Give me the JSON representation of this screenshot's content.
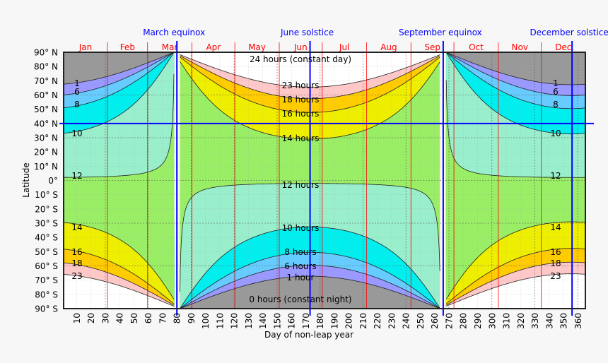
{
  "chart_data": {
    "type": "area",
    "title": "",
    "xlabel": "Day of non-leap year",
    "ylabel": "Latitude",
    "xlim": [
      1,
      365
    ],
    "ylim": [
      -90,
      90
    ],
    "grid": true,
    "x_ticks": [
      10,
      20,
      30,
      40,
      50,
      60,
      70,
      80,
      90,
      100,
      110,
      120,
      130,
      140,
      150,
      160,
      170,
      180,
      190,
      200,
      210,
      220,
      230,
      240,
      250,
      260,
      270,
      280,
      290,
      300,
      310,
      320,
      330,
      340,
      350,
      360
    ],
    "x_tick_labels": [
      "10",
      "20",
      "30",
      "40",
      "50",
      "60",
      "70",
      "80",
      "90",
      "100",
      "110",
      "120",
      "130",
      "140",
      "150",
      "160",
      "170",
      "180",
      "190",
      "200",
      "210",
      "220",
      "230",
      "240",
      "250",
      "260",
      "270",
      "280",
      "290",
      "300",
      "310",
      "320",
      "330",
      "340",
      "350",
      "360"
    ],
    "y_ticks": [
      90,
      80,
      70,
      60,
      50,
      40,
      30,
      20,
      10,
      0,
      -10,
      -20,
      -30,
      -40,
      -50,
      -60,
      -70,
      -80,
      -90
    ],
    "y_tick_labels": [
      "90° N",
      "80° N",
      "70° N",
      "60° N",
      "50° N",
      "40° N",
      "30° N",
      "20° N",
      "10° N",
      "0°",
      "10° S",
      "20° S",
      "30° S",
      "40° S",
      "50° S",
      "60° S",
      "70° S",
      "80° S",
      "90° S"
    ],
    "highlighted_latitude": {
      "value": 40,
      "label": "40° N",
      "color": "#0000ff"
    },
    "months": [
      {
        "label": "Jan",
        "start_day": 1
      },
      {
        "label": "Feb",
        "start_day": 32
      },
      {
        "label": "Mar",
        "start_day": 60
      },
      {
        "label": "Apr",
        "start_day": 91
      },
      {
        "label": "May",
        "start_day": 121
      },
      {
        "label": "Jun",
        "start_day": 152
      },
      {
        "label": "Jul",
        "start_day": 182
      },
      {
        "label": "Aug",
        "start_day": 213
      },
      {
        "label": "Sep",
        "start_day": 244
      },
      {
        "label": "Oct",
        "start_day": 274
      },
      {
        "label": "Nov",
        "start_day": 305
      },
      {
        "label": "Dec",
        "start_day": 335
      }
    ],
    "month_color": "#ff0000",
    "events": [
      {
        "label": "March equinox",
        "day": 80
      },
      {
        "label": "June solstice",
        "day": 173
      },
      {
        "label": "September equinox",
        "day": 266
      },
      {
        "label": "December solstice",
        "day": 356
      }
    ],
    "event_color": "#0000ff",
    "contour_levels_hours": [
      0,
      1,
      6,
      8,
      10,
      12,
      14,
      16,
      18,
      23,
      24
    ],
    "bands": [
      {
        "from": 0,
        "to": 1,
        "color": "#999999"
      },
      {
        "from": 1,
        "to": 6,
        "color": "#9999ff"
      },
      {
        "from": 6,
        "to": 8,
        "color": "#66ccff"
      },
      {
        "from": 8,
        "to": 10,
        "color": "#00eeee"
      },
      {
        "from": 10,
        "to": 12,
        "color": "#99eecc"
      },
      {
        "from": 12,
        "to": 14,
        "color": "#99ee66"
      },
      {
        "from": 14,
        "to": 16,
        "color": "#eeee00"
      },
      {
        "from": 16,
        "to": 18,
        "color": "#ffcc00"
      },
      {
        "from": 18,
        "to": 23,
        "color": "#ffc8c8"
      },
      {
        "from": 23,
        "to": 24,
        "color": "#ffffff"
      }
    ],
    "center_labels": [
      "24 hours (constant day)",
      "23 hours",
      "18 hours",
      "16 hours",
      "14 hours",
      "12 hours",
      "10 hours",
      "8 hours",
      "6 hours",
      "1 hour",
      "0 hours (constant night)"
    ],
    "left_labels": [
      "1",
      "6",
      "8",
      "10",
      "12",
      "14",
      "16",
      "18",
      "23"
    ],
    "right_labels": [
      "1",
      "6",
      "8",
      "10",
      "12",
      "14",
      "16",
      "18",
      "23"
    ]
  }
}
